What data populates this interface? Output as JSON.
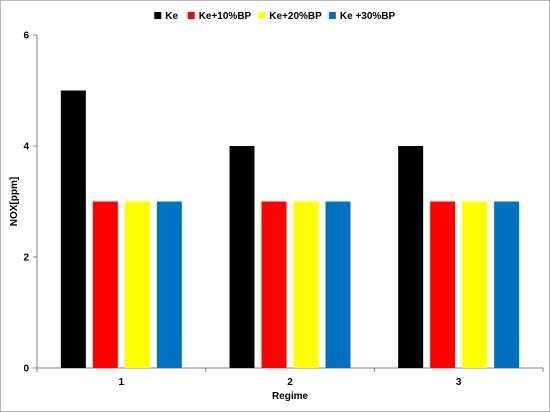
{
  "chart_data": {
    "type": "bar",
    "title": "",
    "xlabel": "Regime",
    "ylabel": "NOX[ppm]",
    "categories": [
      "1",
      "2",
      "3"
    ],
    "ylim": [
      0,
      6
    ],
    "yticks": [
      0,
      2,
      4,
      6
    ],
    "grid": false,
    "legend_position": "top",
    "series": [
      {
        "name": "Ke",
        "color": "#000000",
        "values": [
          5,
          4,
          4
        ]
      },
      {
        "name": "Ke+10%BP",
        "color": "#ff0000",
        "values": [
          3,
          3,
          3
        ]
      },
      {
        "name": "Ke+20%BP",
        "color": "#ffff00",
        "values": [
          3,
          3,
          3
        ]
      },
      {
        "name": "Ke +30%BP",
        "color": "#0070c0",
        "values": [
          3,
          3,
          3
        ]
      }
    ]
  }
}
